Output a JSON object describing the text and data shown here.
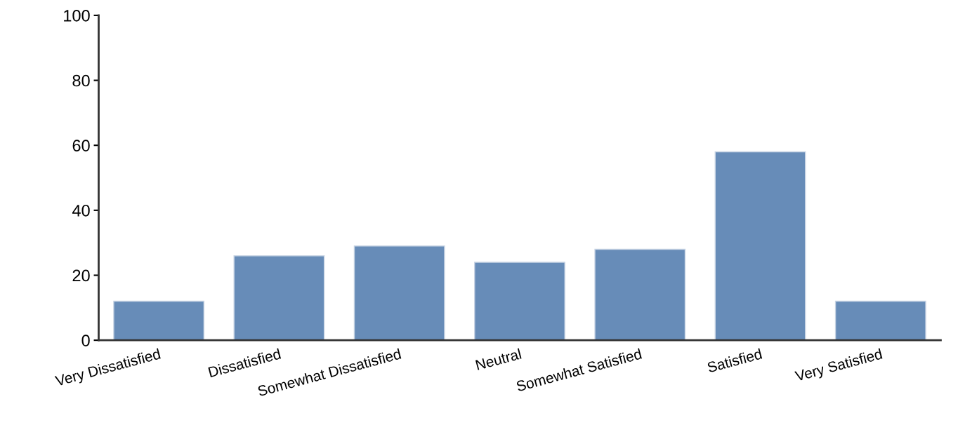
{
  "chart_data": {
    "type": "bar",
    "categories": [
      "Very Dissatisfied",
      "Dissatisfied",
      "Somewhat Dissatisfied",
      "Neutral",
      "Somewhat Satisfied",
      "Satisfied",
      "Very Satisfied"
    ],
    "values": [
      12,
      26,
      29,
      24,
      28,
      58,
      12
    ],
    "color": "#678cb8",
    "ylim": [
      0,
      100
    ],
    "yticks": [
      0,
      20,
      40,
      60,
      80,
      100
    ],
    "grid": false,
    "legend": false
  }
}
